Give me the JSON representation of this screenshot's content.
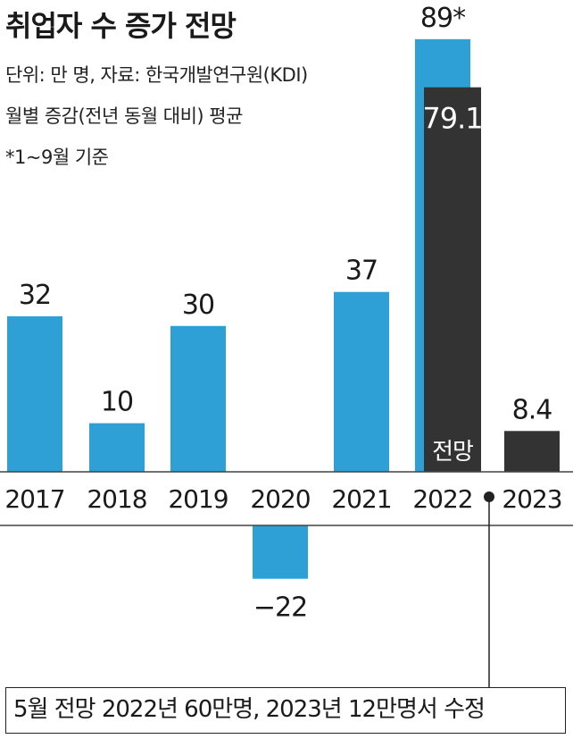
{
  "header": {
    "title": "취업자 수 증가 전망",
    "unit_source": "단위: 만 명, 자료: 한국개발연구원(KDI)",
    "measure": "월별 증감(전년 동월 대비) 평균",
    "note": "*1~9월 기준"
  },
  "footnote": "5월 전망 2022년 60만명, 2023년 12만명서 수정",
  "colors": {
    "actual": "#2fa0d6",
    "forecast": "#333333",
    "axis": "#444444"
  },
  "chart_data": {
    "type": "bar",
    "categories": [
      "2017",
      "2018",
      "2019",
      "2020",
      "2021",
      "2022",
      "2023"
    ],
    "series": [
      {
        "values": [
          32,
          10,
          30,
          -22,
          37,
          89,
          null
        ],
        "labels": [
          "32",
          "10",
          "30",
          "−22",
          "37",
          "89*",
          ""
        ]
      },
      {
        "values": [
          null,
          null,
          null,
          null,
          null,
          79.1,
          8.4
        ],
        "labels": [
          "",
          "",
          "",
          "",
          "",
          "79.1",
          "8.4"
        ]
      }
    ],
    "forecast_label": "전망",
    "grid": false,
    "legend": "none"
  }
}
